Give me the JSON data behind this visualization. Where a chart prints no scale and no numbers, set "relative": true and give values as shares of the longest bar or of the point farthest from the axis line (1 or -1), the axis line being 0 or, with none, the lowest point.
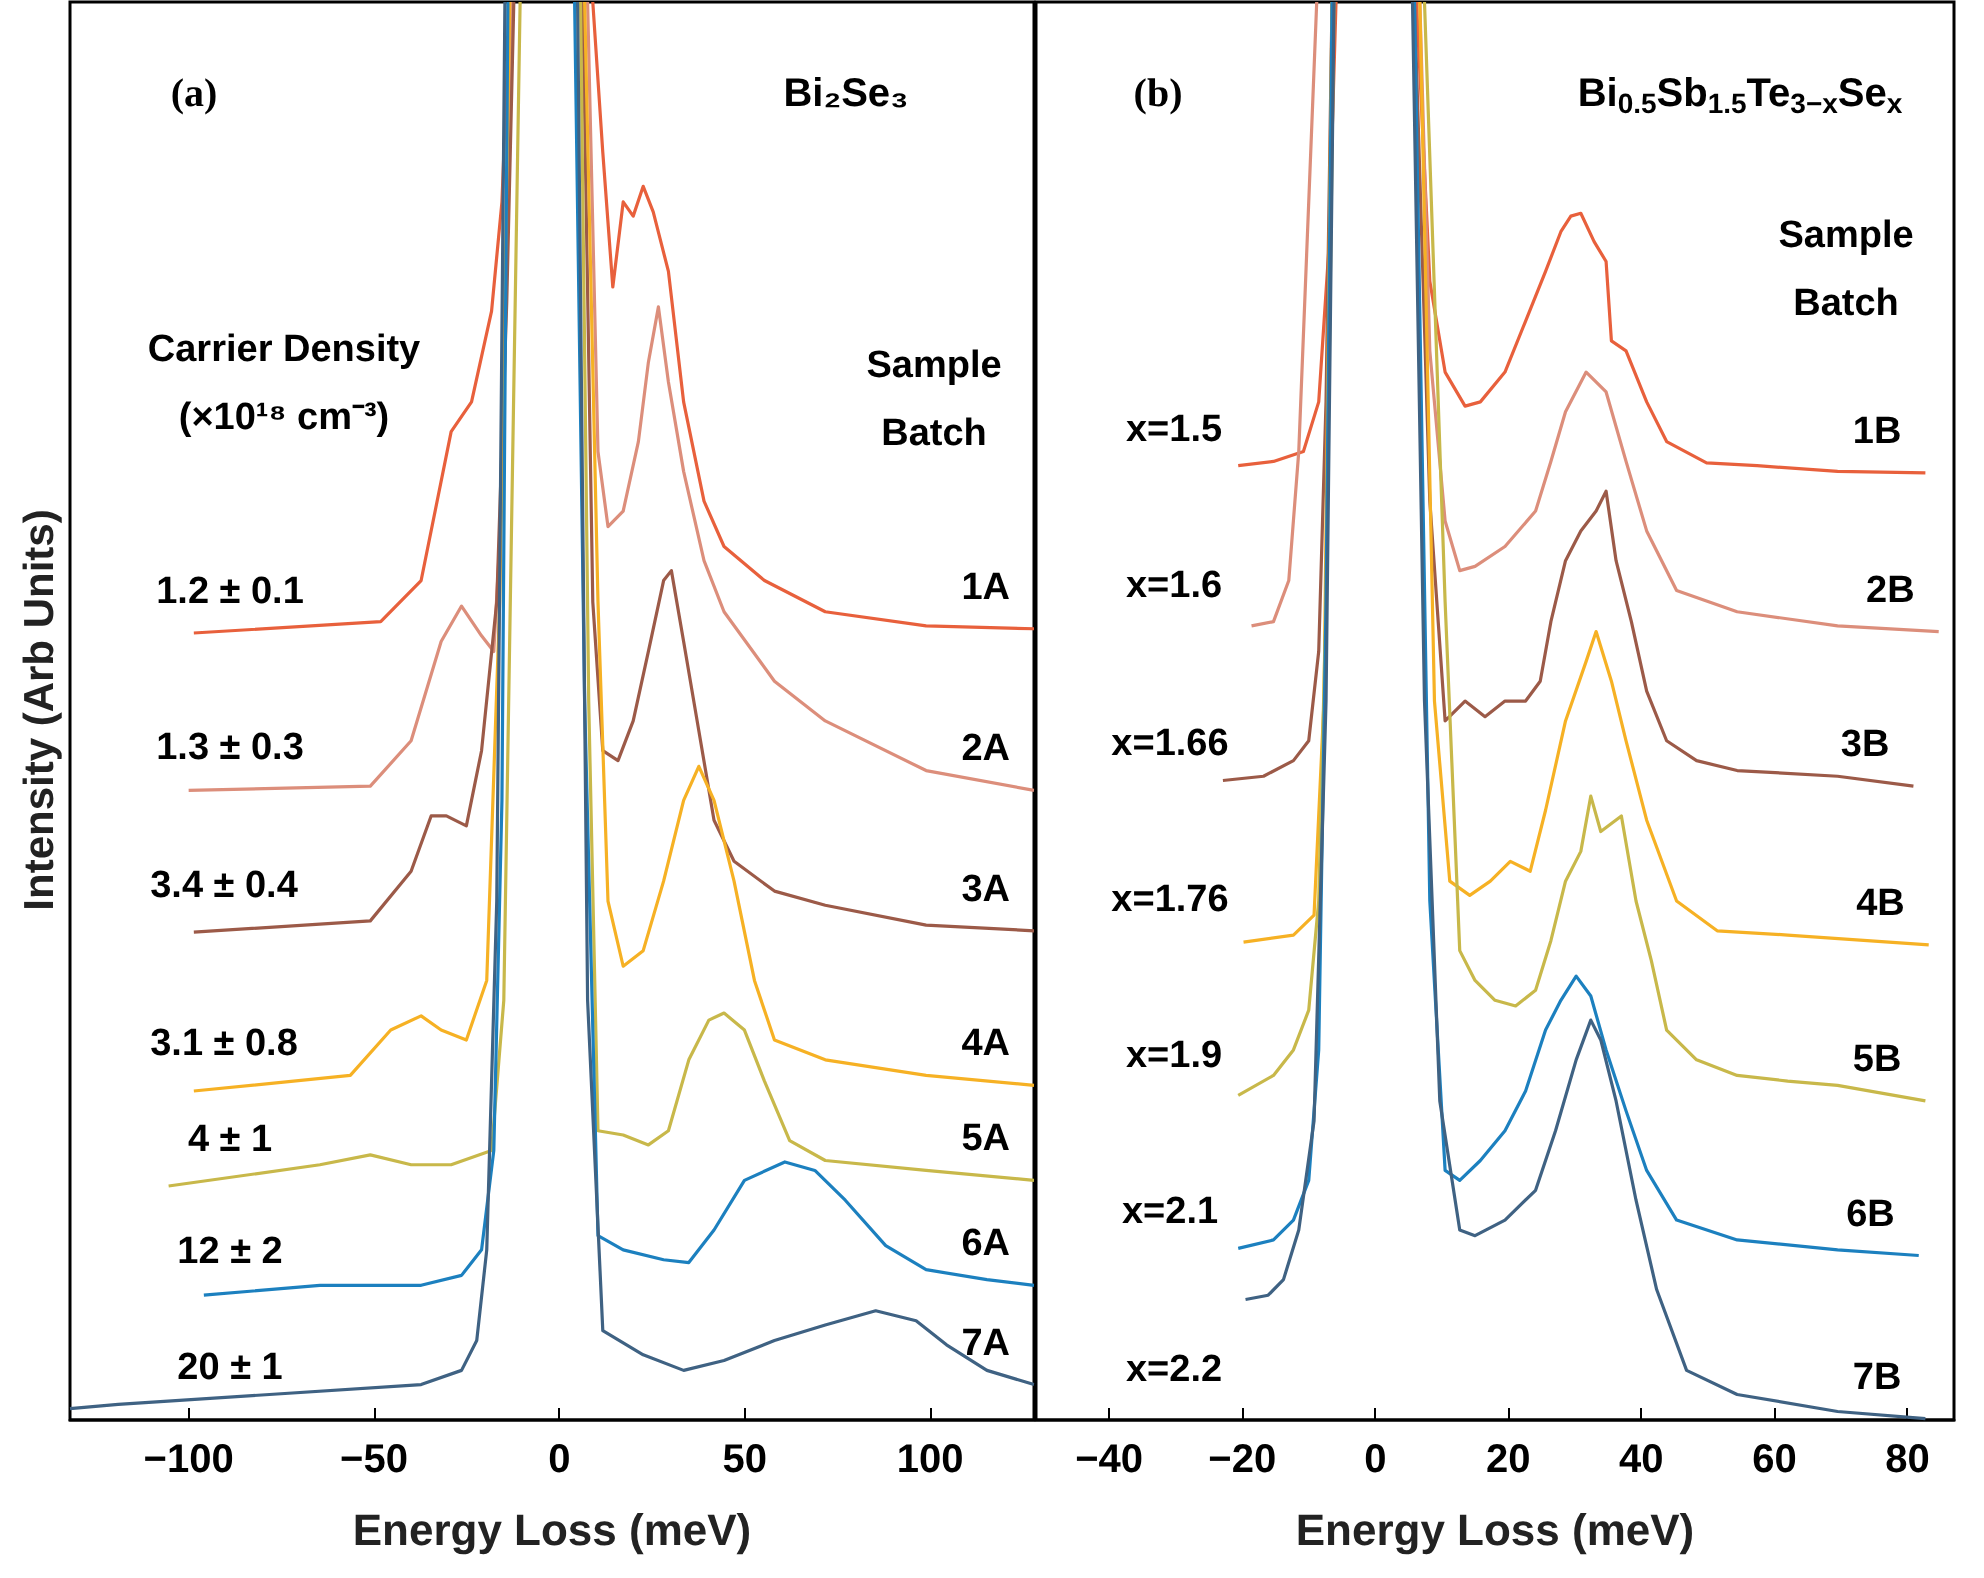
{
  "chart_data": [
    {
      "type": "line",
      "relative": true,
      "title": "(a)",
      "subtitle": "Bi₂Se₃",
      "xlabel": "Energy Loss (meV)",
      "ylabel": "Intensity (Arb Units)",
      "xlim": [
        -132,
        128
      ],
      "xticks": [
        -100,
        -50,
        0,
        50,
        100
      ],
      "grid": false,
      "legend": false,
      "annotations": [
        "Carrier Density\n(×10¹⁸ cm⁻³)",
        "Sample\nBatch",
        "1.2 ± 0.1",
        "1.3 ± 0.3",
        "3.4 ± 0.4",
        "3.1 ± 0.8",
        "4 ± 1",
        "12 ± 2",
        "20 ± 1"
      ],
      "series": [
        {
          "name": "1A",
          "color": "#e8603c",
          "x": [
            -98.6,
            -48.2,
            -37.3,
            -29.2,
            -23.7,
            -18.3,
            -15.5,
            -13.4,
            0,
            9,
            11.7,
            14.4,
            17.2,
            19.9,
            22.6,
            25.3,
            29.4,
            33.5,
            39,
            44.4,
            55.3,
            71.7,
            98.9,
            128
          ],
          "values": [
            0.555,
            0.563,
            0.592,
            0.697,
            0.718,
            0.782,
            0.859,
            1,
            null,
            1,
            0.894,
            0.799,
            0.859,
            0.849,
            0.87,
            0.852,
            0.81,
            0.718,
            0.648,
            0.616,
            0.592,
            0.57,
            0.56,
            0.558
          ]
        },
        {
          "name": "2A",
          "color": "#dc8e7b",
          "x": [
            -100,
            -51,
            -40,
            -31.9,
            -26.4,
            -21,
            -17.7,
            -15.5,
            -12.8,
            0,
            7.6,
            10.4,
            13.1,
            17.2,
            21.3,
            24,
            26.7,
            29.4,
            33.5,
            39,
            44.4,
            58,
            71.7,
            98.9,
            128
          ],
          "values": [
            0.444,
            0.447,
            0.479,
            0.549,
            0.574,
            0.553,
            0.542,
            0.648,
            1,
            null,
            1,
            0.683,
            0.63,
            0.641,
            0.69,
            0.746,
            0.785,
            0.732,
            0.669,
            0.606,
            0.57,
            0.521,
            0.493,
            0.458,
            0.444
          ]
        },
        {
          "name": "3A",
          "color": "#9c5a48",
          "x": [
            -98.6,
            -51,
            -40,
            -34.6,
            -30.5,
            -25.1,
            -21,
            -16.9,
            -14.2,
            -12.3,
            0,
            6.3,
            9,
            11.7,
            15.8,
            19.9,
            24,
            28.1,
            30.2,
            33.5,
            37.6,
            41.7,
            47.1,
            58,
            71.7,
            98.9,
            128
          ],
          "values": [
            0.344,
            0.352,
            0.387,
            0.426,
            0.426,
            0.419,
            0.472,
            0.577,
            0.789,
            1,
            null,
            1,
            0.577,
            0.472,
            0.465,
            0.493,
            0.542,
            0.592,
            0.599,
            0.549,
            0.486,
            0.423,
            0.394,
            0.373,
            0.363,
            0.349,
            0.345
          ]
        },
        {
          "name": "4A",
          "color": "#f6b124",
          "x": [
            -98.6,
            -56.4,
            -45.5,
            -37.3,
            -31.9,
            -25.1,
            -19.6,
            -16.1,
            -13.4,
            0,
            6.8,
            10.4,
            13.1,
            17.2,
            22.6,
            28.1,
            33.5,
            37.6,
            41.7,
            47.1,
            52.6,
            58,
            71.7,
            98.9,
            128
          ],
          "values": [
            0.232,
            0.243,
            0.275,
            0.285,
            0.275,
            0.268,
            0.31,
            0.577,
            1,
            null,
            1,
            0.577,
            0.366,
            0.32,
            0.331,
            0.38,
            0.437,
            0.461,
            0.437,
            0.38,
            0.31,
            0.268,
            0.254,
            0.243,
            0.236
          ]
        },
        {
          "name": "5A",
          "color": "#c8b84a",
          "x": [
            -105.4,
            -64.6,
            -51,
            -40,
            -29.2,
            -18.3,
            -15,
            -12.8,
            -10.6,
            0,
            5.7,
            7.9,
            10.4,
            17.2,
            24,
            29.4,
            34.9,
            40.3,
            44.4,
            49.9,
            55.3,
            62.1,
            71.7,
            98.9,
            128
          ],
          "values": [
            0.165,
            0.18,
            0.187,
            0.18,
            0.18,
            0.19,
            0.296,
            0.648,
            1,
            null,
            1,
            0.507,
            0.204,
            0.201,
            0.194,
            0.204,
            0.254,
            0.282,
            0.287,
            0.275,
            0.239,
            0.197,
            0.183,
            0.176,
            0.169
          ]
        },
        {
          "name": "6A",
          "color": "#1c80bf",
          "x": [
            -95.9,
            -64.6,
            -37.3,
            -26.4,
            -21,
            -17.7,
            -15.5,
            -13.9,
            0,
            4.1,
            6.8,
            10.4,
            17.2,
            28.1,
            34.9,
            41.7,
            49.9,
            60.8,
            68.9,
            77.1,
            88,
            98.9,
            115.3,
            128
          ],
          "values": [
            0.088,
            0.095,
            0.095,
            0.102,
            0.12,
            0.19,
            0.437,
            1,
            null,
            1,
            0.507,
            0.13,
            0.12,
            0.113,
            0.111,
            0.134,
            0.169,
            0.182,
            0.176,
            0.155,
            0.123,
            0.106,
            0.099,
            0.095
          ]
        },
        {
          "name": "7A",
          "color": "#3f6283",
          "x": [
            -132,
            -119,
            -78.2,
            -37.3,
            -26.4,
            -22.3,
            -19.6,
            -16.9,
            -14.7,
            0,
            4.9,
            7.6,
            11.7,
            22.6,
            33.5,
            44.4,
            58,
            71.7,
            85.3,
            96.2,
            104.4,
            115.3,
            128
          ],
          "values": [
            0.008,
            0.011,
            0.018,
            0.025,
            0.035,
            0.056,
            0.12,
            0.366,
            1,
            null,
            1,
            0.296,
            0.063,
            0.046,
            0.035,
            0.042,
            0.056,
            0.067,
            0.077,
            0.07,
            0.053,
            0.035,
            0.025
          ]
        }
      ]
    },
    {
      "type": "line",
      "relative": true,
      "title": "(b)",
      "subtitle": "Bi$_{0.5}$Sb$_{1.5}$Te$_{3−x}$Se$_{x}$",
      "xlabel": "Energy Loss (meV)",
      "xlim": [
        -51,
        87
      ],
      "xticks": [
        -40,
        -20,
        0,
        20,
        40,
        60,
        80
      ],
      "grid": false,
      "legend": false,
      "annotations": [
        "Sample\nBatch",
        "x=1.5",
        "x=1.6",
        "x=1.66",
        "x=1.76",
        "x=1.9",
        "x=2.1",
        "x=2.2"
      ],
      "series": [
        {
          "name": "1B",
          "color": "#e8603c",
          "x": [
            -20.6,
            -15.3,
            -10.8,
            -8.5,
            -7,
            -5.9,
            0,
            6.2,
            8.2,
            10.5,
            13.5,
            15.8,
            19.5,
            22.6,
            25.6,
            27.9,
            29.4,
            30.9,
            32.9,
            34.7,
            35.5,
            37.7,
            40.8,
            43.8,
            49.8,
            57.4,
            69.5,
            82.7
          ],
          "values": [
            0.673,
            0.676,
            0.683,
            0.718,
            0.824,
            1,
            null,
            1,
            0.803,
            0.739,
            0.715,
            0.718,
            0.739,
            0.775,
            0.81,
            0.838,
            0.849,
            0.851,
            0.831,
            0.817,
            0.761,
            0.754,
            0.718,
            0.69,
            0.675,
            0.673,
            0.669,
            0.668
          ]
        },
        {
          "name": "2B",
          "color": "#dc8e7b",
          "x": [
            -18.6,
            -15.3,
            -13,
            -11.5,
            -10,
            -8.8,
            0,
            6.7,
            8.2,
            10.5,
            12.7,
            15,
            19.5,
            24.1,
            26.4,
            28.6,
            31.7,
            34.7,
            37.7,
            40.8,
            45.3,
            54.4,
            69.5,
            84.7
          ],
          "values": [
            0.56,
            0.563,
            0.592,
            0.683,
            0.859,
            1,
            null,
            1,
            0.754,
            0.634,
            0.599,
            0.602,
            0.616,
            0.641,
            0.676,
            0.711,
            0.739,
            0.725,
            0.676,
            0.627,
            0.585,
            0.57,
            0.56,
            0.556
          ]
        },
        {
          "name": "3B",
          "color": "#9c5a48",
          "x": [
            -22.9,
            -16.8,
            -12.3,
            -10,
            -8.5,
            -7.4,
            -6.5,
            0,
            5.9,
            8.2,
            10.5,
            13.5,
            16.5,
            19.5,
            22.6,
            24.8,
            26.4,
            28.6,
            30.9,
            33.2,
            34.7,
            36.2,
            38.5,
            40.8,
            43.8,
            48.3,
            54.4,
            69.5,
            80.9
          ],
          "values": [
            0.451,
            0.454,
            0.465,
            0.479,
            0.542,
            0.718,
            1,
            null,
            1,
            0.648,
            0.493,
            0.507,
            0.496,
            0.507,
            0.507,
            0.521,
            0.563,
            0.606,
            0.627,
            0.641,
            0.655,
            0.606,
            0.563,
            0.514,
            0.479,
            0.465,
            0.458,
            0.454,
            0.447
          ]
        },
        {
          "name": "4B",
          "color": "#f6b124",
          "x": [
            -19.8,
            -12.3,
            -9.2,
            -7.7,
            -6.5,
            0,
            6.7,
            8.9,
            11.2,
            14.2,
            17.3,
            20.3,
            23.3,
            25.6,
            28.6,
            31.7,
            33.2,
            35.5,
            37.7,
            40.8,
            45.3,
            51.4,
            62,
            83.2
          ],
          "values": [
            0.337,
            0.342,
            0.356,
            0.507,
            1,
            null,
            1,
            0.507,
            0.38,
            0.37,
            0.38,
            0.394,
            0.387,
            0.43,
            0.493,
            0.535,
            0.556,
            0.521,
            0.479,
            0.423,
            0.366,
            0.345,
            0.342,
            0.335
          ]
        },
        {
          "name": "5B",
          "color": "#c8b84a",
          "x": [
            -20.6,
            -15.3,
            -12.3,
            -10,
            -8.5,
            -7.4,
            -6.2,
            0,
            7.4,
            10.5,
            12.7,
            15,
            18,
            21.1,
            24.1,
            26.4,
            28.6,
            30.9,
            32.4,
            33.9,
            37,
            39.2,
            41.5,
            43.8,
            48.3,
            54.4,
            62,
            69.5,
            82.7
          ],
          "values": [
            0.229,
            0.243,
            0.261,
            0.289,
            0.366,
            0.577,
            1,
            null,
            1,
            0.577,
            0.331,
            0.31,
            0.296,
            0.292,
            0.303,
            0.338,
            0.38,
            0.401,
            0.44,
            0.415,
            0.426,
            0.366,
            0.324,
            0.275,
            0.254,
            0.243,
            0.239,
            0.236,
            0.225
          ]
        },
        {
          "name": "6B",
          "color": "#1c80bf",
          "x": [
            -20.6,
            -15.3,
            -12.3,
            -10,
            -8.5,
            -7.4,
            -6.5,
            0,
            5.9,
            8.2,
            10.5,
            12.7,
            15.8,
            19.5,
            22.6,
            25.6,
            27.9,
            30.2,
            32.4,
            34.7,
            37.7,
            40.8,
            45.3,
            54.4,
            69.5,
            81.7
          ],
          "values": [
            0.121,
            0.127,
            0.141,
            0.169,
            0.261,
            0.577,
            1,
            null,
            1,
            0.366,
            0.176,
            0.169,
            0.183,
            0.204,
            0.232,
            0.275,
            0.296,
            0.313,
            0.299,
            0.261,
            0.218,
            0.176,
            0.141,
            0.127,
            0.12,
            0.116
          ]
        },
        {
          "name": "7B",
          "color": "#3f6283",
          "x": [
            -19.5,
            -16.1,
            -13.8,
            -11.5,
            -9.2,
            -7.4,
            -6.2,
            0,
            5.6,
            7.4,
            9.7,
            12.7,
            15,
            19.5,
            24.1,
            27.1,
            30.2,
            32.4,
            33.9,
            36.2,
            39.2,
            42.3,
            46.8,
            54.4,
            69.5,
            82.7
          ],
          "values": [
            0.085,
            0.088,
            0.099,
            0.134,
            0.211,
            0.507,
            1,
            null,
            1,
            0.507,
            0.225,
            0.134,
            0.13,
            0.141,
            0.162,
            0.204,
            0.254,
            0.282,
            0.268,
            0.225,
            0.155,
            0.092,
            0.035,
            0.018,
            0.006,
            0.001
          ]
        }
      ]
    }
  ]
}
